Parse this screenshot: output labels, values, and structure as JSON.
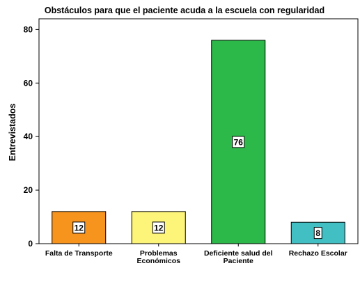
{
  "chart_data": {
    "type": "bar",
    "title": "Obstáculos para que el paciente acuda a la escuela con regularidad",
    "xlabel": "",
    "ylabel": "Entrevistados",
    "ylim": [
      0,
      84
    ],
    "yticks": [
      0,
      20,
      40,
      60,
      80
    ],
    "categories": [
      [
        "Falta de Transporte"
      ],
      [
        "Problemas",
        "Económicos"
      ],
      [
        "Deficiente salud del",
        "Paciente"
      ],
      [
        "Rechazo Escolar"
      ]
    ],
    "values": [
      12,
      12,
      76,
      8
    ],
    "data_labels": [
      "12",
      "12",
      "76",
      "8"
    ],
    "colors": [
      "#f7941d",
      "#fdf47a",
      "#2db84a",
      "#42bfc3"
    ],
    "grid": false,
    "legend": "none"
  }
}
